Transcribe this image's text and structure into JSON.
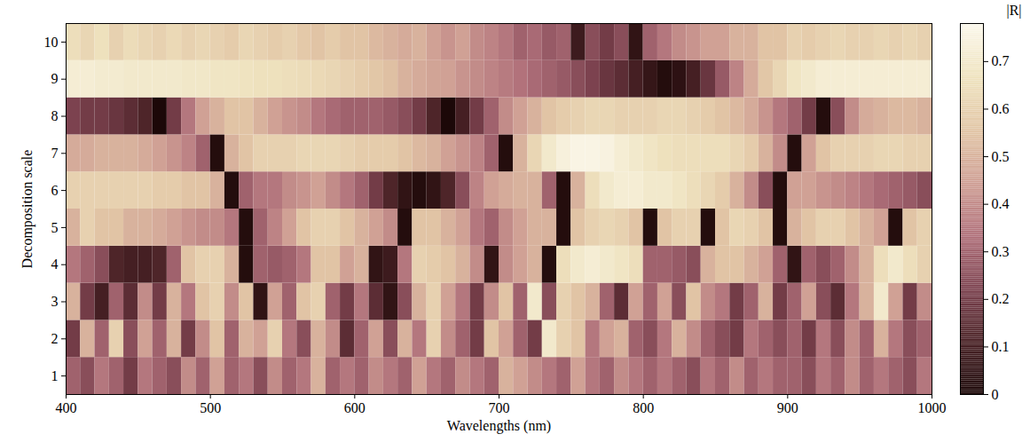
{
  "chart_data": {
    "type": "heatmap",
    "xlabel": "Wavelengths (nm)",
    "ylabel": "Decomposition scale",
    "x": [
      400,
      410,
      420,
      430,
      440,
      450,
      460,
      470,
      480,
      490,
      500,
      510,
      520,
      530,
      540,
      550,
      560,
      570,
      580,
      590,
      600,
      610,
      620,
      630,
      640,
      650,
      660,
      670,
      680,
      690,
      700,
      710,
      720,
      730,
      740,
      750,
      760,
      770,
      780,
      790,
      800,
      810,
      820,
      830,
      840,
      850,
      860,
      870,
      880,
      890,
      900,
      910,
      920,
      930,
      940,
      950,
      960,
      970,
      980,
      990
    ],
    "xlim": [
      400,
      1000
    ],
    "xticks": [
      400,
      500,
      600,
      700,
      800,
      900,
      1000
    ],
    "y": [
      1,
      2,
      3,
      4,
      5,
      6,
      7,
      8,
      9,
      10
    ],
    "ylim": [
      0.5,
      10.5
    ],
    "yticks": [
      1,
      2,
      3,
      4,
      5,
      6,
      7,
      8,
      9,
      10
    ],
    "cells": [
      [
        0.3,
        0.25,
        0.35,
        0.3,
        0.2,
        0.35,
        0.3,
        0.25,
        0.4,
        0.3,
        0.45,
        0.3,
        0.35,
        0.25,
        0.4,
        0.3,
        0.35,
        0.5,
        0.3,
        0.35,
        0.3,
        0.4,
        0.35,
        0.3,
        0.45,
        0.35,
        0.3,
        0.4,
        0.35,
        0.3,
        0.5,
        0.45,
        0.4,
        0.35,
        0.3,
        0.45,
        0.35,
        0.3,
        0.4,
        0.35,
        0.3,
        0.35,
        0.3,
        0.25,
        0.35,
        0.3,
        0.4,
        0.3,
        0.35,
        0.3,
        0.3,
        0.25,
        0.35,
        0.3,
        0.4,
        0.3,
        0.35,
        0.3,
        0.25,
        0.35
      ],
      [
        0.2,
        0.5,
        0.3,
        0.6,
        0.25,
        0.45,
        0.3,
        0.5,
        0.2,
        0.4,
        0.55,
        0.3,
        0.5,
        0.45,
        0.6,
        0.35,
        0.25,
        0.5,
        0.4,
        0.15,
        0.3,
        0.45,
        0.25,
        0.5,
        0.35,
        0.6,
        0.4,
        0.3,
        0.2,
        0.55,
        0.45,
        0.3,
        0.2,
        0.7,
        0.6,
        0.55,
        0.35,
        0.45,
        0.5,
        0.3,
        0.25,
        0.35,
        0.5,
        0.4,
        0.3,
        0.25,
        0.2,
        0.35,
        0.3,
        0.25,
        0.3,
        0.2,
        0.35,
        0.25,
        0.4,
        0.3,
        0.5,
        0.35,
        0.25,
        0.3
      ],
      [
        0.5,
        0.2,
        0.1,
        0.3,
        0.15,
        0.4,
        0.2,
        0.5,
        0.35,
        0.55,
        0.6,
        0.4,
        0.55,
        0.05,
        0.45,
        0.3,
        0.55,
        0.6,
        0.3,
        0.2,
        0.35,
        0.15,
        0.05,
        0.25,
        0.5,
        0.6,
        0.45,
        0.35,
        0.2,
        0.4,
        0.55,
        0.3,
        0.7,
        0.25,
        0.6,
        0.55,
        0.5,
        0.3,
        0.15,
        0.45,
        0.3,
        0.45,
        0.25,
        0.55,
        0.4,
        0.35,
        0.2,
        0.3,
        0.5,
        0.2,
        0.3,
        0.45,
        0.25,
        0.15,
        0.35,
        0.5,
        0.7,
        0.45,
        0.2,
        0.4
      ],
      [
        0.35,
        0.3,
        0.25,
        0.12,
        0.1,
        0.1,
        0.12,
        0.3,
        0.55,
        0.6,
        0.6,
        0.5,
        0.02,
        0.3,
        0.28,
        0.3,
        0.35,
        0.55,
        0.55,
        0.45,
        0.5,
        0.05,
        0.08,
        0.35,
        0.6,
        0.58,
        0.55,
        0.5,
        0.4,
        0.05,
        0.4,
        0.45,
        0.5,
        0.02,
        0.65,
        0.7,
        0.72,
        0.7,
        0.68,
        0.65,
        0.3,
        0.3,
        0.28,
        0.25,
        0.5,
        0.55,
        0.55,
        0.5,
        0.45,
        0.3,
        0.05,
        0.3,
        0.25,
        0.3,
        0.4,
        0.5,
        0.65,
        0.7,
        0.65,
        0.6
      ],
      [
        0.5,
        0.6,
        0.55,
        0.55,
        0.5,
        0.5,
        0.48,
        0.45,
        0.42,
        0.4,
        0.4,
        0.35,
        0.02,
        0.3,
        0.38,
        0.45,
        0.55,
        0.6,
        0.6,
        0.55,
        0.5,
        0.45,
        0.4,
        0.02,
        0.55,
        0.55,
        0.5,
        0.45,
        0.35,
        0.3,
        0.4,
        0.45,
        0.5,
        0.5,
        0.02,
        0.55,
        0.6,
        0.62,
        0.6,
        0.55,
        0.02,
        0.55,
        0.6,
        0.6,
        0.02,
        0.55,
        0.62,
        0.6,
        0.55,
        0.02,
        0.5,
        0.55,
        0.6,
        0.6,
        0.55,
        0.5,
        0.45,
        0.02,
        0.55,
        0.6
      ],
      [
        0.6,
        0.6,
        0.6,
        0.6,
        0.6,
        0.6,
        0.58,
        0.58,
        0.55,
        0.55,
        0.5,
        0.02,
        0.3,
        0.35,
        0.35,
        0.4,
        0.42,
        0.45,
        0.4,
        0.35,
        0.3,
        0.2,
        0.12,
        0.05,
        0.02,
        0.05,
        0.12,
        0.25,
        0.38,
        0.45,
        0.48,
        0.5,
        0.5,
        0.3,
        0.02,
        0.5,
        0.65,
        0.7,
        0.72,
        0.72,
        0.7,
        0.7,
        0.68,
        0.65,
        0.62,
        0.58,
        0.5,
        0.4,
        0.25,
        0.02,
        0.45,
        0.45,
        0.42,
        0.4,
        0.38,
        0.35,
        0.32,
        0.3,
        0.28,
        0.25
      ],
      [
        0.48,
        0.48,
        0.5,
        0.5,
        0.5,
        0.48,
        0.45,
        0.42,
        0.38,
        0.3,
        0.02,
        0.5,
        0.55,
        0.6,
        0.6,
        0.6,
        0.62,
        0.62,
        0.62,
        0.6,
        0.58,
        0.58,
        0.58,
        0.55,
        0.52,
        0.5,
        0.45,
        0.42,
        0.38,
        0.3,
        0.02,
        0.5,
        0.62,
        0.7,
        0.74,
        0.76,
        0.76,
        0.75,
        0.72,
        0.7,
        0.68,
        0.66,
        0.65,
        0.65,
        0.65,
        0.65,
        0.62,
        0.58,
        0.5,
        0.4,
        0.02,
        0.45,
        0.55,
        0.6,
        0.6,
        0.6,
        0.62,
        0.62,
        0.6,
        0.6
      ],
      [
        0.22,
        0.2,
        0.2,
        0.18,
        0.15,
        0.12,
        0.0,
        0.2,
        0.35,
        0.45,
        0.5,
        0.55,
        0.55,
        0.5,
        0.45,
        0.42,
        0.4,
        0.35,
        0.32,
        0.3,
        0.3,
        0.3,
        0.28,
        0.25,
        0.2,
        0.12,
        0.0,
        0.1,
        0.2,
        0.3,
        0.4,
        0.45,
        0.5,
        0.55,
        0.58,
        0.6,
        0.62,
        0.62,
        0.6,
        0.6,
        0.6,
        0.62,
        0.62,
        0.6,
        0.58,
        0.55,
        0.52,
        0.48,
        0.42,
        0.35,
        0.3,
        0.2,
        0.02,
        0.25,
        0.4,
        0.48,
        0.5,
        0.52,
        0.52,
        0.5
      ],
      [
        0.72,
        0.72,
        0.71,
        0.71,
        0.7,
        0.7,
        0.7,
        0.7,
        0.69,
        0.69,
        0.68,
        0.68,
        0.67,
        0.66,
        0.66,
        0.65,
        0.64,
        0.63,
        0.62,
        0.6,
        0.58,
        0.56,
        0.54,
        0.5,
        0.48,
        0.46,
        0.45,
        0.42,
        0.4,
        0.38,
        0.36,
        0.34,
        0.32,
        0.3,
        0.28,
        0.25,
        0.22,
        0.18,
        0.15,
        0.1,
        0.06,
        0.02,
        0.04,
        0.1,
        0.18,
        0.28,
        0.38,
        0.48,
        0.56,
        0.62,
        0.68,
        0.7,
        0.72,
        0.72,
        0.72,
        0.72,
        0.72,
        0.72,
        0.72,
        0.72
      ],
      [
        0.65,
        0.62,
        0.66,
        0.6,
        0.64,
        0.62,
        0.6,
        0.63,
        0.6,
        0.62,
        0.6,
        0.58,
        0.62,
        0.6,
        0.58,
        0.6,
        0.57,
        0.55,
        0.58,
        0.55,
        0.55,
        0.52,
        0.5,
        0.48,
        0.5,
        0.45,
        0.42,
        0.45,
        0.4,
        0.38,
        0.35,
        0.3,
        0.32,
        0.28,
        0.3,
        0.08,
        0.25,
        0.2,
        0.25,
        0.05,
        0.3,
        0.35,
        0.4,
        0.42,
        0.45,
        0.45,
        0.5,
        0.5,
        0.55,
        0.55,
        0.6,
        0.58,
        0.6,
        0.62,
        0.6,
        0.6,
        0.62,
        0.6,
        0.62,
        0.6
      ]
    ],
    "colorbar": {
      "label": "|R|",
      "range": [
        0,
        0.78
      ],
      "ticks": [
        0,
        0.1,
        0.2,
        0.3,
        0.4,
        0.5,
        0.6,
        0.7
      ],
      "colors": [
        "#1c0808",
        "#4a2226",
        "#7d4350",
        "#b0707a",
        "#cf9f94",
        "#e2c6a6",
        "#efe3bf",
        "#fbf8ec"
      ]
    }
  }
}
